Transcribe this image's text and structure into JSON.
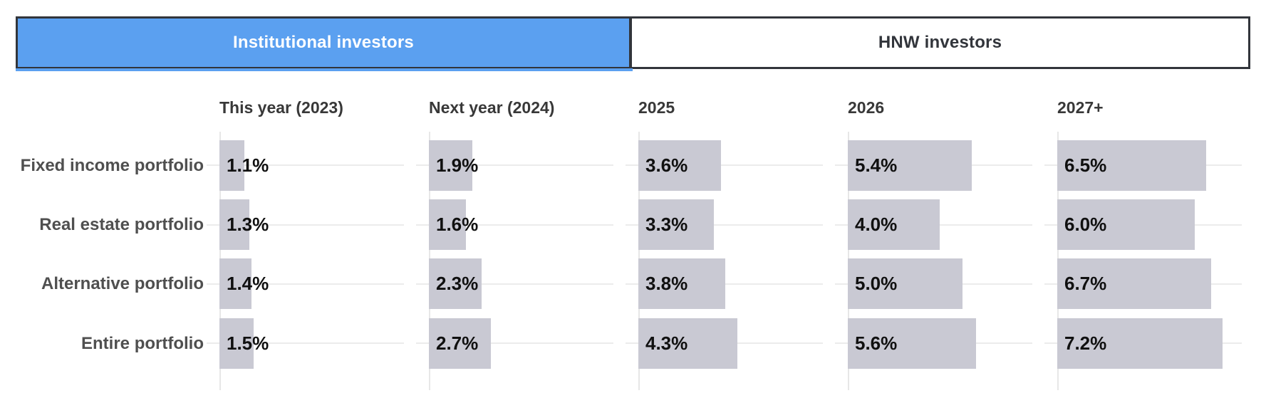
{
  "tabs": [
    {
      "label": "Institutional investors",
      "active": true
    },
    {
      "label": "HNW investors",
      "active": false
    }
  ],
  "columns": [
    "This year (2023)",
    "Next year (2024)",
    "2025",
    "2026",
    "2027+"
  ],
  "rows": [
    {
      "label": "Fixed income portfolio",
      "values": [
        "1.1%",
        "1.9%",
        "3.6%",
        "5.4%",
        "6.5%"
      ]
    },
    {
      "label": "Real estate portfolio",
      "values": [
        "1.3%",
        "1.6%",
        "3.3%",
        "4.0%",
        "6.0%"
      ]
    },
    {
      "label": "Alternative portfolio",
      "values": [
        "1.4%",
        "2.3%",
        "3.8%",
        "5.0%",
        "6.7%"
      ]
    },
    {
      "label": "Entire portfolio",
      "values": [
        "1.5%",
        "2.7%",
        "4.3%",
        "5.6%",
        "7.2%"
      ]
    }
  ],
  "colors": {
    "active_tab_blue": "#5ba0f0",
    "tab_border_dark": "#32353b",
    "bar_fill": "#c9c9d3",
    "gridline": "#ececec",
    "value_text": "#101010",
    "row_label_text": "#4f4f4f"
  },
  "chart_data": {
    "type": "bar",
    "title": "",
    "tab_labels": [
      "Institutional investors",
      "HNW investors"
    ],
    "active_tab": "Institutional investors",
    "orientation": "horizontal",
    "unit": "%",
    "categories": [
      "Fixed income portfolio",
      "Real estate portfolio",
      "Alternative portfolio",
      "Entire portfolio"
    ],
    "series": [
      {
        "name": "This year (2023)",
        "values": [
          1.1,
          1.3,
          1.4,
          1.5
        ]
      },
      {
        "name": "Next year (2024)",
        "values": [
          1.9,
          1.6,
          2.3,
          2.7
        ]
      },
      {
        "name": "2025",
        "values": [
          3.6,
          3.3,
          3.8,
          4.3
        ]
      },
      {
        "name": "2026",
        "values": [
          5.4,
          4.0,
          5.0,
          5.6
        ]
      },
      {
        "name": "2027+",
        "values": [
          6.5,
          6.0,
          6.7,
          7.2
        ]
      }
    ],
    "xlim_per_column": [
      0,
      8
    ],
    "grid": true,
    "data_labels": "inside-start, bold"
  }
}
